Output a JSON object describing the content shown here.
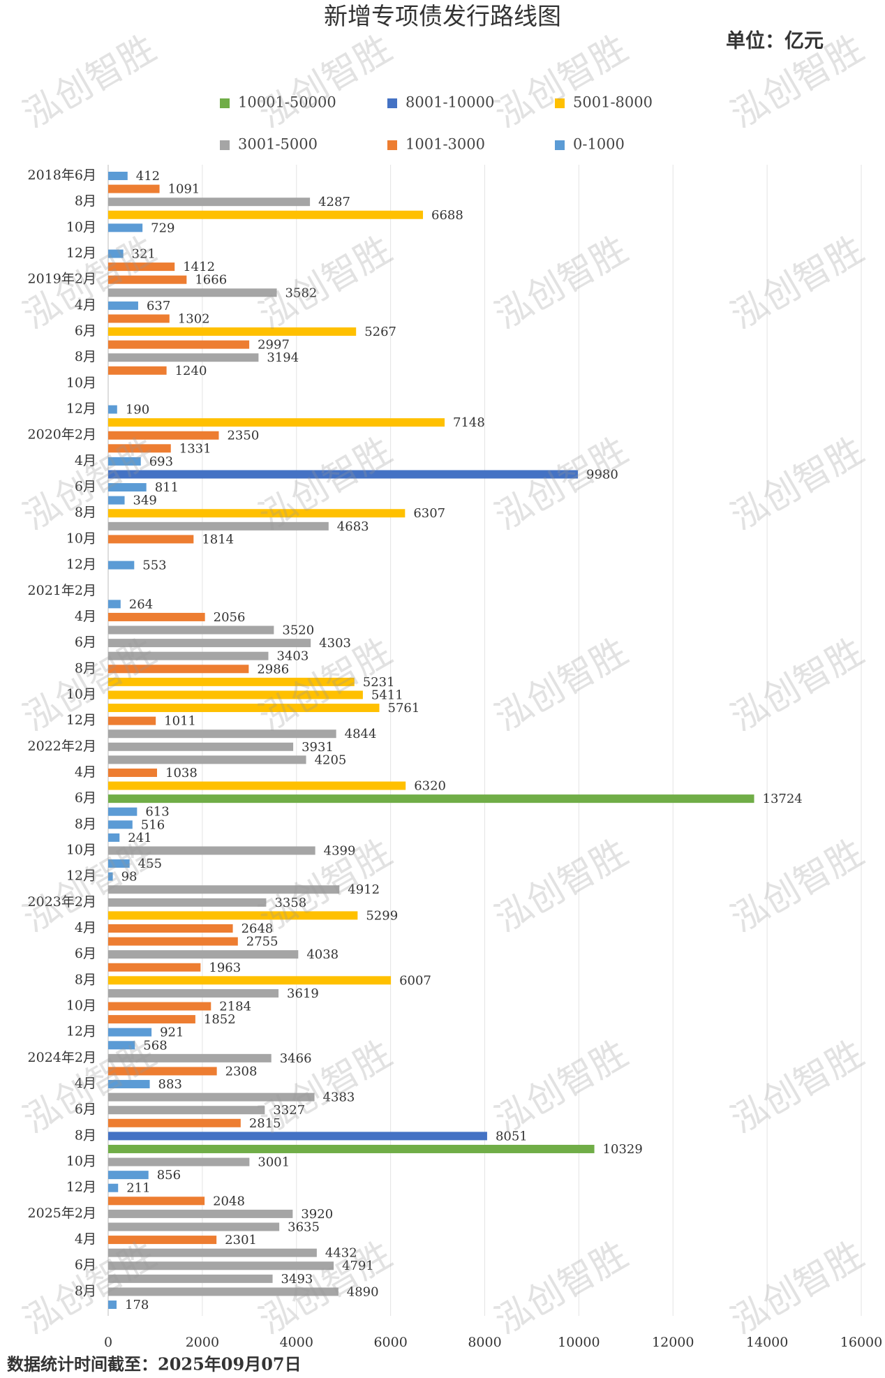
{
  "chart_data": {
    "type": "barh",
    "title": "新增专项债发行路线图",
    "unit": "单位：亿元",
    "footnote": "数据统计时间截至：2025年09月07日",
    "watermark": "泓创智胜",
    "legend": [
      {
        "name": "10001-50000",
        "color": "#70ad47"
      },
      {
        "name": "8001-10000",
        "color": "#4472c4"
      },
      {
        "name": "5001-8000",
        "color": "#ffc000"
      },
      {
        "name": "3001-5000",
        "color": "#a5a5a5"
      },
      {
        "name": "1001-3000",
        "color": "#ed7d31"
      },
      {
        "name": "0-1000",
        "color": "#5b9bd5"
      }
    ],
    "categories": [
      "2018年6月",
      null,
      "8月",
      null,
      "10月",
      null,
      "12月",
      null,
      "2019年2月",
      null,
      "4月",
      null,
      "6月",
      null,
      "8月",
      null,
      "10月",
      null,
      "12月",
      null,
      "2020年2月",
      null,
      "4月",
      null,
      "6月",
      null,
      "8月",
      null,
      "10月",
      null,
      "12月",
      null,
      "2021年2月",
      null,
      "4月",
      null,
      "6月",
      null,
      "8月",
      null,
      "10月",
      null,
      "12月",
      null,
      "2022年2月",
      null,
      "4月",
      null,
      "6月",
      null,
      "8月",
      null,
      "10月",
      null,
      "12月",
      null,
      "2023年2月",
      null,
      "4月",
      null,
      "6月",
      null,
      "8月",
      null,
      "10月",
      null,
      "12月",
      null,
      "2024年2月",
      null,
      "4月",
      null,
      "6月",
      null,
      "8月",
      null,
      "10月",
      null,
      "12月",
      null,
      "2025年2月",
      null,
      "4月",
      null,
      "6月",
      null,
      "8月",
      null
    ],
    "values": [
      412,
      1091,
      4287,
      6688,
      729,
      null,
      321,
      1412,
      1666,
      3582,
      637,
      1302,
      5267,
      2997,
      3194,
      1240,
      null,
      null,
      190,
      7148,
      2350,
      1331,
      693,
      9980,
      811,
      349,
      6307,
      4683,
      1814,
      null,
      553,
      null,
      null,
      264,
      2056,
      3520,
      4303,
      3403,
      2986,
      5231,
      5411,
      5761,
      1011,
      4844,
      3931,
      4205,
      1038,
      6320,
      13724,
      613,
      516,
      241,
      4399,
      455,
      98,
      4912,
      3358,
      5299,
      2648,
      2755,
      4038,
      1963,
      6007,
      3619,
      2184,
      1852,
      921,
      568,
      3466,
      2308,
      883,
      4383,
      3327,
      2815,
      8051,
      10329,
      3001,
      856,
      211,
      2048,
      3920,
      3635,
      2301,
      4432,
      4791,
      3493,
      4890,
      178
    ],
    "colors": [
      "#5b9bd5",
      "#ed7d31",
      "#a5a5a5",
      "#ffc000",
      "#5b9bd5",
      null,
      "#5b9bd5",
      "#ed7d31",
      "#ed7d31",
      "#a5a5a5",
      "#5b9bd5",
      "#ed7d31",
      "#ffc000",
      "#ed7d31",
      "#a5a5a5",
      "#ed7d31",
      null,
      null,
      "#5b9bd5",
      "#ffc000",
      "#ed7d31",
      "#ed7d31",
      "#5b9bd5",
      "#4472c4",
      "#5b9bd5",
      "#5b9bd5",
      "#ffc000",
      "#a5a5a5",
      "#ed7d31",
      null,
      "#5b9bd5",
      null,
      null,
      "#5b9bd5",
      "#ed7d31",
      "#a5a5a5",
      "#a5a5a5",
      "#a5a5a5",
      "#ed7d31",
      "#ffc000",
      "#ffc000",
      "#ffc000",
      "#ed7d31",
      "#a5a5a5",
      "#a5a5a5",
      "#a5a5a5",
      "#ed7d31",
      "#ffc000",
      "#70ad47",
      "#5b9bd5",
      "#5b9bd5",
      "#5b9bd5",
      "#a5a5a5",
      "#5b9bd5",
      "#5b9bd5",
      "#a5a5a5",
      "#a5a5a5",
      "#ffc000",
      "#ed7d31",
      "#ed7d31",
      "#a5a5a5",
      "#ed7d31",
      "#ffc000",
      "#a5a5a5",
      "#ed7d31",
      "#ed7d31",
      "#5b9bd5",
      "#5b9bd5",
      "#a5a5a5",
      "#ed7d31",
      "#5b9bd5",
      "#a5a5a5",
      "#a5a5a5",
      "#ed7d31",
      "#4472c4",
      "#70ad47",
      "#a5a5a5",
      "#5b9bd5",
      "#5b9bd5",
      "#ed7d31",
      "#a5a5a5",
      "#a5a5a5",
      "#ed7d31",
      "#a5a5a5",
      "#a5a5a5",
      "#a5a5a5",
      "#a5a5a5",
      "#5b9bd5"
    ],
    "xlim": [
      0,
      16000
    ],
    "xticks": [
      0,
      2000,
      4000,
      6000,
      8000,
      10000,
      12000,
      14000,
      16000
    ],
    "grid": true
  }
}
